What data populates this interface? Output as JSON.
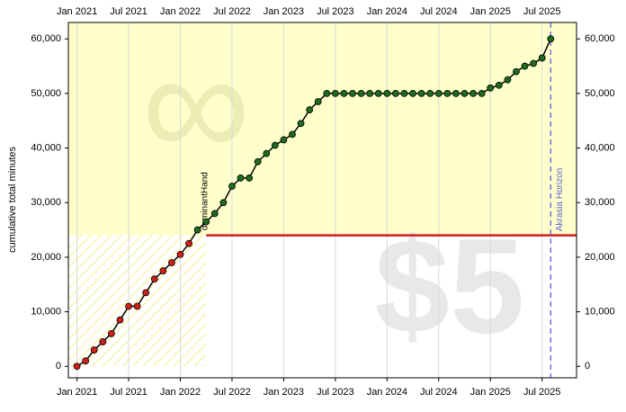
{
  "chart_data": {
    "type": "line",
    "ylabel": "cumulative total minutes",
    "xlim": [
      "2020-12",
      "2025-11"
    ],
    "ylim": [
      -2100,
      63000
    ],
    "xticks": [
      {
        "value": "2021-01",
        "label": "Jan 2021"
      },
      {
        "value": "2021-07",
        "label": "Jul 2021"
      },
      {
        "value": "2022-01",
        "label": "Jan 2022"
      },
      {
        "value": "2022-07",
        "label": "Jul 2022"
      },
      {
        "value": "2023-01",
        "label": "Jan 2023"
      },
      {
        "value": "2023-07",
        "label": "Jul 2023"
      },
      {
        "value": "2024-01",
        "label": "Jan 2024"
      },
      {
        "value": "2024-07",
        "label": "Jul 2024"
      },
      {
        "value": "2025-01",
        "label": "Jan 2025"
      },
      {
        "value": "2025-07",
        "label": "Jul 2025"
      }
    ],
    "yticks": [
      0,
      {
        "value": 10000,
        "label": "10,000"
      },
      {
        "value": 20000,
        "label": "20,000"
      },
      {
        "value": 30000,
        "label": "30,000"
      },
      {
        "value": 40000,
        "label": "40,000"
      },
      {
        "value": 50000,
        "label": "50,000"
      },
      {
        "value": 60000,
        "label": "60,000"
      }
    ],
    "grid": true,
    "x": [
      "2021-01",
      "2021-02",
      "2021-03",
      "2021-04",
      "2021-05",
      "2021-06",
      "2021-07",
      "2021-08",
      "2021-09",
      "2021-10",
      "2021-11",
      "2021-12",
      "2022-01",
      "2022-02",
      "2022-03",
      "2022-04",
      "2022-05",
      "2022-06",
      "2022-07",
      "2022-08",
      "2022-09",
      "2022-10",
      "2022-11",
      "2022-12",
      "2023-01",
      "2023-02",
      "2023-03",
      "2023-04",
      "2023-05",
      "2023-06",
      "2023-07",
      "2023-08",
      "2023-09",
      "2023-10",
      "2023-11",
      "2023-12",
      "2024-01",
      "2024-02",
      "2024-03",
      "2024-04",
      "2024-05",
      "2024-06",
      "2024-07",
      "2024-08",
      "2024-09",
      "2024-10",
      "2024-11",
      "2024-12",
      "2025-01",
      "2025-02",
      "2025-03",
      "2025-04",
      "2025-05",
      "2025-06",
      "2025-07",
      "2025-08"
    ],
    "series": [
      {
        "name": "cumulative",
        "color": "#1f6b1f",
        "values": [
          0,
          1000,
          3000,
          4500,
          6000,
          8500,
          11000,
          11000,
          13500,
          16000,
          17500,
          19000,
          20500,
          22500,
          25000,
          26500,
          28000,
          30000,
          33000,
          34500,
          34500,
          37500,
          39000,
          40500,
          41500,
          42500,
          44500,
          47000,
          48500,
          50000,
          50000,
          50000,
          50000,
          50000,
          50000,
          50000,
          50000,
          50000,
          50000,
          50000,
          50000,
          50000,
          50000,
          50000,
          50000,
          50000,
          50000,
          50000,
          51000,
          51500,
          52500,
          54000,
          55000,
          55500,
          56500,
          60000
        ]
      }
    ],
    "goal": {
      "value": 24000,
      "start": "2022-04",
      "color": "#d0201c"
    },
    "horizon": {
      "x": "2025-08",
      "label": "Akrasia Horizon"
    },
    "annotation": {
      "text": "dominantHand",
      "x": "2022-03",
      "y": 24000
    },
    "watermarks": [
      "∞",
      "$5"
    ]
  }
}
